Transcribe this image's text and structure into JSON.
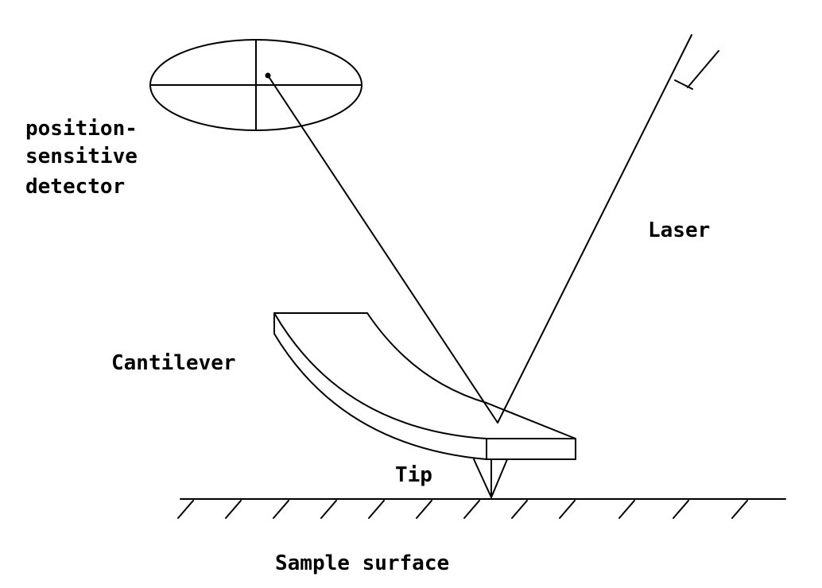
{
  "labels": {
    "detector_line1": "position-",
    "detector_line2": "sensitive",
    "detector_line3": "detector",
    "laser": "Laser",
    "cantilever": "Cantilever",
    "tip": "Tip",
    "sample_surface": "Sample surface"
  },
  "colors": {
    "ink": "#000000",
    "background": "#ffffff"
  }
}
